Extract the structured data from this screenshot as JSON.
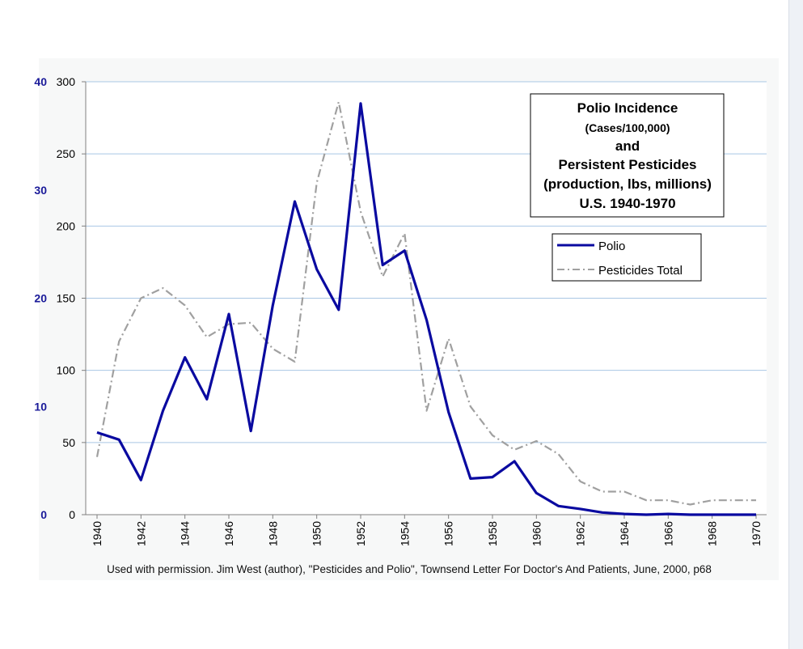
{
  "chart_data": {
    "type": "line",
    "title_lines": [
      "Polio Incidence",
      "(Cases/100,000)",
      "and",
      "Persistent Pesticides",
      "(production, lbs, millions)",
      "U.S.  1940-1970"
    ],
    "x_ticks": [
      "1940",
      "1942",
      "1944",
      "1946",
      "1948",
      "1950",
      "1952",
      "1954",
      "1956",
      "1958",
      "1960",
      "1962",
      "1964",
      "1966",
      "1968",
      "1970"
    ],
    "xlim": [
      1940,
      1970
    ],
    "right_axis": {
      "ylim": [
        0,
        300
      ],
      "ticks": [
        "0",
        "50",
        "100",
        "150",
        "200",
        "250",
        "300"
      ]
    },
    "left_axis": {
      "ylim": [
        0,
        40
      ],
      "ticks": [
        "0",
        "10",
        "20",
        "30",
        "40"
      ],
      "color": "#1a1a99"
    },
    "grid": "horizontal",
    "legend_position": "top-right",
    "series": [
      {
        "name": "Polio",
        "color": "#0a0aa0",
        "style": "solid",
        "x": [
          1940,
          1941,
          1942,
          1943,
          1944,
          1945,
          1946,
          1947,
          1948,
          1949,
          1950,
          1951,
          1952,
          1953,
          1954,
          1955,
          1956,
          1957,
          1958,
          1959,
          1960,
          1961,
          1962,
          1963,
          1964,
          1965,
          1966,
          1967,
          1968,
          1969,
          1970
        ],
        "values": [
          57,
          52,
          24,
          72,
          109,
          80,
          139,
          58,
          145,
          217,
          170,
          142,
          285,
          173,
          183,
          135,
          71,
          25,
          26,
          37,
          15,
          6,
          4,
          1.5,
          0.5,
          0,
          0.5,
          0,
          0,
          0,
          0
        ]
      },
      {
        "name": "Pesticides Total",
        "color": "#a0a0a0",
        "style": "dashdot",
        "x": [
          1940,
          1941,
          1942,
          1943,
          1944,
          1945,
          1946,
          1947,
          1948,
          1949,
          1950,
          1951,
          1952,
          1953,
          1954,
          1955,
          1956,
          1957,
          1958,
          1959,
          1960,
          1961,
          1962,
          1963,
          1964,
          1965,
          1966,
          1967,
          1968,
          1969,
          1970
        ],
        "values": [
          40,
          120,
          150,
          157,
          145,
          123,
          132,
          133,
          115,
          106,
          230,
          286,
          210,
          165,
          195,
          72,
          122,
          75,
          55,
          45,
          51,
          42,
          23,
          16,
          16,
          10,
          10,
          7,
          10,
          10,
          10
        ]
      }
    ],
    "legend": [
      "Polio",
      "Pesticides Total"
    ],
    "source_note": "Used with permission.  Jim West (author), \"Pesticides and Polio\", Townsend Letter For Doctor's And Patients, June, 2000, p68"
  }
}
